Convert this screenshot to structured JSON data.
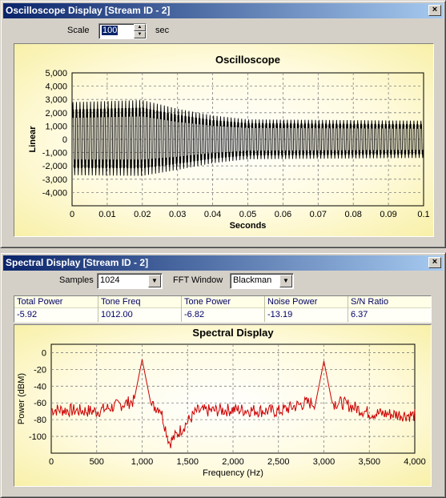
{
  "osc_window": {
    "title": "Oscilloscope Display [Stream ID - 2]",
    "close_glyph": "×",
    "scale_label": "Scale",
    "scale_value": "100",
    "scale_unit": "sec"
  },
  "spec_window": {
    "title": "Spectral Display [Stream ID - 2]",
    "close_glyph": "×",
    "samples_label": "Samples",
    "samples_value": "1024",
    "fft_label": "FFT Window",
    "fft_value": "Blackman"
  },
  "stats": {
    "columns": [
      {
        "header": "Total Power",
        "value": "-5.92"
      },
      {
        "header": "Tone Freq",
        "value": "1012.00"
      },
      {
        "header": "Tone Power",
        "value": "-6.82"
      },
      {
        "header": "Noise Power",
        "value": "-13.19"
      },
      {
        "header": "S/N Ratio",
        "value": "6.37"
      }
    ]
  },
  "colors": {
    "title_start": "#0a246a",
    "title_end": "#a6caf0",
    "osc_trace": "#000000",
    "spec_trace": "#cc0000",
    "grid": "#808080"
  },
  "icons": {
    "close": "close-icon",
    "spin_up": "spin-up-icon",
    "spin_down": "spin-down-icon",
    "dropdown": "chevron-down-icon"
  },
  "chart_data": [
    {
      "type": "line",
      "title": "Oscilloscope",
      "xlabel": "Seconds",
      "ylabel": "Linear",
      "xlim": [
        0,
        0.1
      ],
      "ylim": [
        -5000,
        5000
      ],
      "x_ticks": [
        0,
        0.01,
        0.02,
        0.03,
        0.04,
        0.05,
        0.06,
        0.07,
        0.08,
        0.09,
        0.1
      ],
      "x_tick_labels": [
        "0",
        "0.01",
        "0.02",
        "0.03",
        "0.04",
        "0.05",
        "0.06",
        "0.07",
        "0.08",
        "0.09",
        "0.1"
      ],
      "y_ticks": [
        5000,
        4000,
        3000,
        2000,
        1000,
        0,
        -1000,
        -2000,
        -3000,
        -4000
      ],
      "y_tick_labels": [
        "5,000",
        "4,000",
        "3,000",
        "2,000",
        "1,000",
        "0",
        "-1,000",
        "-2,000",
        "-3,000",
        "-4,000"
      ],
      "grid": true,
      "series": [
        {
          "tone_frequency_hz": 1000,
          "envelope": {
            "x": [
              0,
              0.02,
              0.03,
              0.04,
              0.05,
              0.1
            ],
            "max": [
              2800,
              2950,
              2300,
              1800,
              1500,
              1400
            ],
            "min": [
              -2700,
              -2750,
              -2300,
              -1800,
              -1500,
              -1400
            ]
          }
        }
      ]
    },
    {
      "type": "line",
      "title": "Spectral Display",
      "xlabel": "Frequency (Hz)",
      "ylabel": "Power (dBM)",
      "xlim": [
        0,
        4000
      ],
      "ylim": [
        -120,
        10
      ],
      "x_ticks": [
        0,
        500,
        1000,
        1500,
        2000,
        2500,
        3000,
        3500,
        4000
      ],
      "x_tick_labels": [
        "0",
        "500",
        "1,000",
        "1,500",
        "2,000",
        "2,500",
        "3,000",
        "3,500",
        "4,000"
      ],
      "y_ticks": [
        0,
        -20,
        -40,
        -60,
        -80,
        -100
      ],
      "y_tick_labels": [
        "0",
        "-20",
        "-40",
        "-60",
        "-80",
        "-100"
      ],
      "grid": true,
      "series": [
        {
          "peaks": [
            {
              "x": 1000,
              "y": -8
            },
            {
              "x": 3000,
              "y": -10
            }
          ],
          "noise_floor": {
            "x": [
              0,
              500,
              900,
              1200,
              1300,
              1600,
              2000,
              2500,
              2800,
              3200,
              3500,
              4000
            ],
            "y": [
              -68,
              -70,
              -58,
              -66,
              -108,
              -70,
              -68,
              -70,
              -60,
              -60,
              -72,
              -75
            ]
          }
        }
      ]
    }
  ]
}
